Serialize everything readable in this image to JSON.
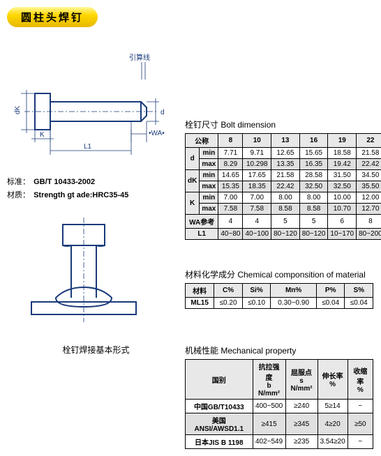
{
  "title": "圆柱头焊钉",
  "diagram1_label": "引算线",
  "spec": {
    "std_lbl": "标准：",
    "std_val": "GB/T 10433-2002",
    "mat_lbl": "材质：",
    "mat_val": "Strength gt ade:HRC35-45"
  },
  "diagram2_caption": "栓钉焊接基本形式",
  "bolt_dim": {
    "title": "栓钉尺寸 Bolt dimension",
    "col_labels": [
      "公称",
      "8",
      "10",
      "13",
      "16",
      "19",
      "22"
    ],
    "rows": [
      {
        "group": "d",
        "sub": "min",
        "vals": [
          "7.71",
          "9.71",
          "12.65",
          "15.65",
          "18.58",
          "21.58"
        ]
      },
      {
        "group": "d",
        "sub": "max",
        "vals": [
          "8.29",
          "10.298",
          "13.35",
          "16.35",
          "19.42",
          "22.42"
        ]
      },
      {
        "group": "dK",
        "sub": "min",
        "vals": [
          "14.65",
          "17.65",
          "21.58",
          "28.58",
          "31.50",
          "34.50"
        ]
      },
      {
        "group": "dK",
        "sub": "max",
        "vals": [
          "15.35",
          "18.35",
          "22.42",
          "32.50",
          "32.50",
          "35.50"
        ]
      },
      {
        "group": "K",
        "sub": "min",
        "vals": [
          "7.00",
          "7.00",
          "8.00",
          "8.00",
          "10.00",
          "12.00"
        ]
      },
      {
        "group": "K",
        "sub": "max",
        "vals": [
          "7.58",
          "7.58",
          "8.58",
          "8.58",
          "10.70",
          "12.70"
        ]
      },
      {
        "group": "WA参考",
        "sub": "",
        "vals": [
          "4",
          "4",
          "5",
          "5",
          "6",
          "8"
        ]
      },
      {
        "group": "L1",
        "sub": "",
        "vals": [
          "40~80",
          "40~100",
          "80~120",
          "80~120",
          "10~170",
          "80~200"
        ]
      }
    ]
  },
  "chem": {
    "title": "材料化学成分 Chemical componsition of material",
    "headers": [
      "材料",
      "C%",
      "Si%",
      "Mn%",
      "P%",
      "S%"
    ],
    "row": [
      "ML15",
      "≤0.20",
      "≤0.10",
      "0.30~0.90",
      "≤0.04",
      "≤0.04"
    ]
  },
  "mech": {
    "title": "机械性能 Mechanical property",
    "headers": [
      "国别",
      "抗拉强度\nb N/mm²",
      "屈服点\ns N/mm²",
      "伸长率\n%",
      "收缩率\n%"
    ],
    "rows": [
      [
        "中国GB/T10433",
        "400~500",
        "≥240",
        "5≥14",
        "~"
      ],
      [
        "美国ANSI/AWSD1.1",
        "≥415",
        "≥345",
        "4≥20",
        "≥50"
      ],
      [
        "日本JIS B 1198",
        "402~549",
        "≥235",
        "3.54≥20",
        "~"
      ]
    ]
  },
  "dim_labels": {
    "d": "d",
    "dK": "dK",
    "K": "K",
    "L1": "L1",
    "WA": "•WA•"
  }
}
